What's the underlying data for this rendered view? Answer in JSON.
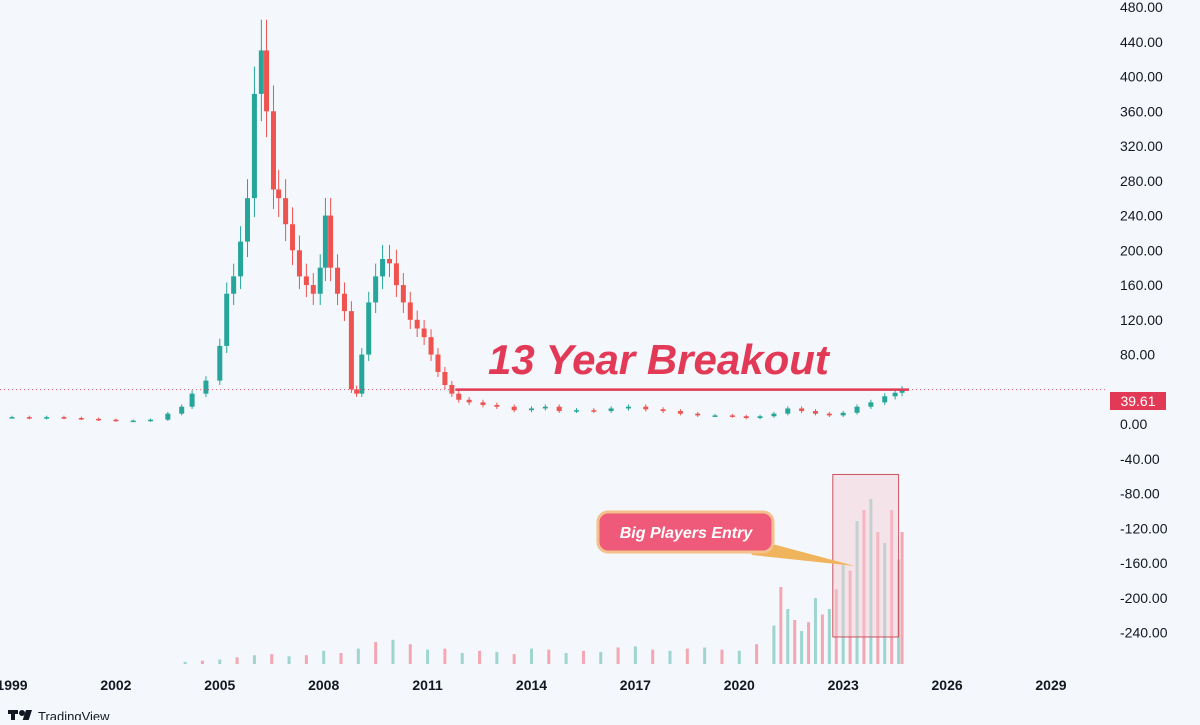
{
  "chart_data": {
    "type": "candlestick",
    "title": "",
    "xlabel": "",
    "ylabel": "",
    "ylim": [
      -260,
      480
    ],
    "y_ticks": [
      "480.00",
      "440.00",
      "400.00",
      "360.00",
      "320.00",
      "280.00",
      "240.00",
      "200.00",
      "160.00",
      "120.00",
      "80.00",
      "0.00",
      "-40.00",
      "-80.00",
      "-120.00",
      "-160.00",
      "-200.00",
      "-240.00"
    ],
    "y_tick_values": [
      480,
      440,
      400,
      360,
      320,
      280,
      240,
      200,
      160,
      120,
      80,
      0,
      -40,
      -80,
      -120,
      -160,
      -200,
      -240
    ],
    "xlim": [
      1999,
      2030.3
    ],
    "x_ticks": [
      "1999",
      "2002",
      "2005",
      "2008",
      "2011",
      "2014",
      "2017",
      "2020",
      "2023",
      "2026",
      "2029"
    ],
    "x_tick_values": [
      1999,
      2002,
      2005,
      2008,
      2011,
      2014,
      2017,
      2020,
      2023,
      2026,
      2029
    ],
    "grid": false,
    "last_price": "39.61",
    "last_price_value": 39.61,
    "up_color": "#26a69a",
    "down_color": "#ef5350",
    "price_series": {
      "name": "",
      "x": [
        1999.0,
        1999.5,
        2000.0,
        2000.5,
        2001.0,
        2001.5,
        2002.0,
        2002.5,
        2003.0,
        2003.5,
        2003.9,
        2004.2,
        2004.6,
        2005.0,
        2005.2,
        2005.4,
        2005.6,
        2005.8,
        2006.0,
        2006.2,
        2006.35,
        2006.55,
        2006.7,
        2006.9,
        2007.1,
        2007.3,
        2007.5,
        2007.7,
        2007.9,
        2008.05,
        2008.2,
        2008.4,
        2008.6,
        2008.8,
        2008.95,
        2009.1,
        2009.3,
        2009.5,
        2009.7,
        2009.9,
        2010.1,
        2010.3,
        2010.5,
        2010.7,
        2010.9,
        2011.1,
        2011.3,
        2011.5,
        2011.7,
        2011.9,
        2012.2,
        2012.6,
        2013.0,
        2013.5,
        2014.0,
        2014.4,
        2014.8,
        2015.3,
        2015.8,
        2016.3,
        2016.8,
        2017.3,
        2017.8,
        2018.3,
        2018.8,
        2019.3,
        2019.8,
        2020.2,
        2020.6,
        2021.0,
        2021.4,
        2021.8,
        2022.2,
        2022.6,
        2023.0,
        2023.4,
        2023.8,
        2024.2,
        2024.5,
        2024.7
      ],
      "close": [
        8,
        7,
        8,
        7,
        6,
        5,
        4,
        4,
        5,
        12,
        20,
        35,
        50,
        90,
        150,
        170,
        210,
        260,
        380,
        430,
        360,
        270,
        260,
        230,
        200,
        170,
        160,
        150,
        180,
        240,
        180,
        150,
        130,
        40,
        35,
        80,
        140,
        170,
        190,
        185,
        160,
        140,
        120,
        110,
        100,
        80,
        60,
        45,
        35,
        28,
        25,
        22,
        20,
        16,
        18,
        20,
        15,
        16,
        15,
        18,
        20,
        17,
        15,
        12,
        10,
        10,
        9,
        7,
        9,
        12,
        18,
        15,
        12,
        10,
        13,
        20,
        25,
        32,
        36,
        39.61
      ]
    },
    "volume_series": {
      "name": "",
      "x": [
        2004.0,
        2004.5,
        2005.0,
        2005.5,
        2006.0,
        2006.5,
        2007.0,
        2007.5,
        2008.0,
        2008.5,
        2009.0,
        2009.5,
        2010.0,
        2010.5,
        2011.0,
        2011.5,
        2012.0,
        2012.5,
        2013.0,
        2013.5,
        2014.0,
        2014.5,
        2015.0,
        2015.5,
        2016.0,
        2016.5,
        2017.0,
        2017.5,
        2018.0,
        2018.5,
        2019.0,
        2019.5,
        2020.0,
        2020.5,
        2021.0,
        2021.2,
        2021.4,
        2021.6,
        2021.8,
        2022.0,
        2022.2,
        2022.4,
        2022.6,
        2022.8,
        2023.0,
        2023.2,
        2023.4,
        2023.6,
        2023.8,
        2024.0,
        2024.2,
        2024.4,
        2024.6,
        2024.7
      ],
      "values": [
        2,
        3,
        4,
        6,
        8,
        9,
        7,
        8,
        12,
        10,
        14,
        20,
        22,
        18,
        13,
        14,
        10,
        12,
        11,
        9,
        14,
        13,
        10,
        12,
        11,
        15,
        16,
        13,
        12,
        14,
        15,
        13,
        12,
        18,
        35,
        70,
        50,
        40,
        30,
        38,
        60,
        45,
        50,
        68,
        90,
        85,
        130,
        140,
        150,
        120,
        110,
        140,
        95,
        120
      ]
    },
    "annotations": [
      {
        "text": "13 Year Breakout",
        "type": "horizontal-line",
        "value": 39.61,
        "x_start": 2011.8,
        "x_end": 2024.9
      },
      {
        "text": "Big Players Entry",
        "type": "callout-box",
        "x_range": [
          2022.7,
          2024.6
        ],
        "y_range": [
          -245,
          -58
        ]
      }
    ]
  },
  "colors": {
    "accent": "#e23a56",
    "callout_fill": "#ef5a7a",
    "callout_border": "#f5c08a",
    "box_fill": "#f3c9d3",
    "box_border": "#c9555f"
  },
  "branding": {
    "icon": "tradingview-logo-icon",
    "text": "TradingView"
  }
}
